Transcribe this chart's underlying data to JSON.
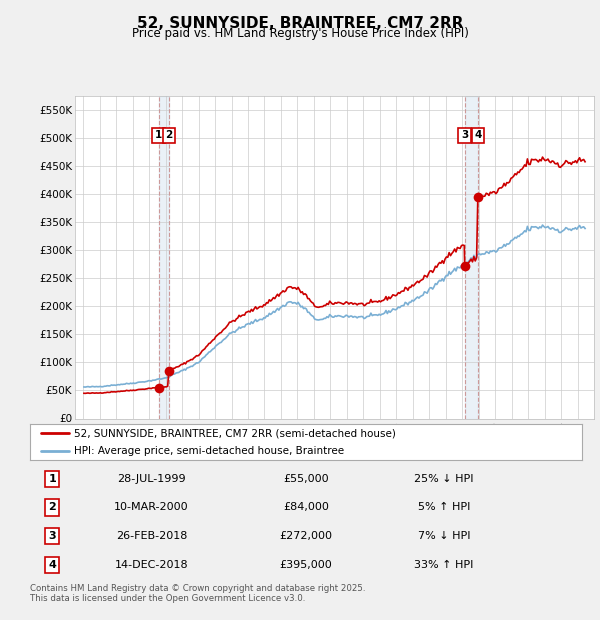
{
  "title": "52, SUNNYSIDE, BRAINTREE, CM7 2RR",
  "subtitle": "Price paid vs. HM Land Registry's House Price Index (HPI)",
  "red_line_label": "52, SUNNYSIDE, BRAINTREE, CM7 2RR (semi-detached house)",
  "blue_line_label": "HPI: Average price, semi-detached house, Braintree",
  "transactions": [
    {
      "num": 1,
      "date": "28-JUL-1999",
      "price": 55000,
      "pct": "25%",
      "dir": "↓",
      "year_x": 1999.57
    },
    {
      "num": 2,
      "date": "10-MAR-2000",
      "price": 84000,
      "pct": "5%",
      "dir": "↑",
      "year_x": 2000.19
    },
    {
      "num": 3,
      "date": "26-FEB-2018",
      "price": 272000,
      "pct": "7%",
      "dir": "↓",
      "year_x": 2018.15
    },
    {
      "num": 4,
      "date": "14-DEC-2018",
      "price": 395000,
      "pct": "33%",
      "dir": "↑",
      "year_x": 2018.95
    }
  ],
  "footer": "Contains HM Land Registry data © Crown copyright and database right 2025.\nThis data is licensed under the Open Government Licence v3.0.",
  "ylim": [
    0,
    575000
  ],
  "yticks": [
    0,
    50000,
    100000,
    150000,
    200000,
    250000,
    300000,
    350000,
    400000,
    450000,
    500000,
    550000
  ],
  "xlim_start": 1994.5,
  "xlim_end": 2026.0,
  "bg_color": "#f0f0f0",
  "plot_bg_color": "#ffffff",
  "grid_color": "#cccccc",
  "red_color": "#cc0000",
  "blue_color": "#7aafd4",
  "band_color": "#ccdded",
  "vline_color": "#cc9999"
}
